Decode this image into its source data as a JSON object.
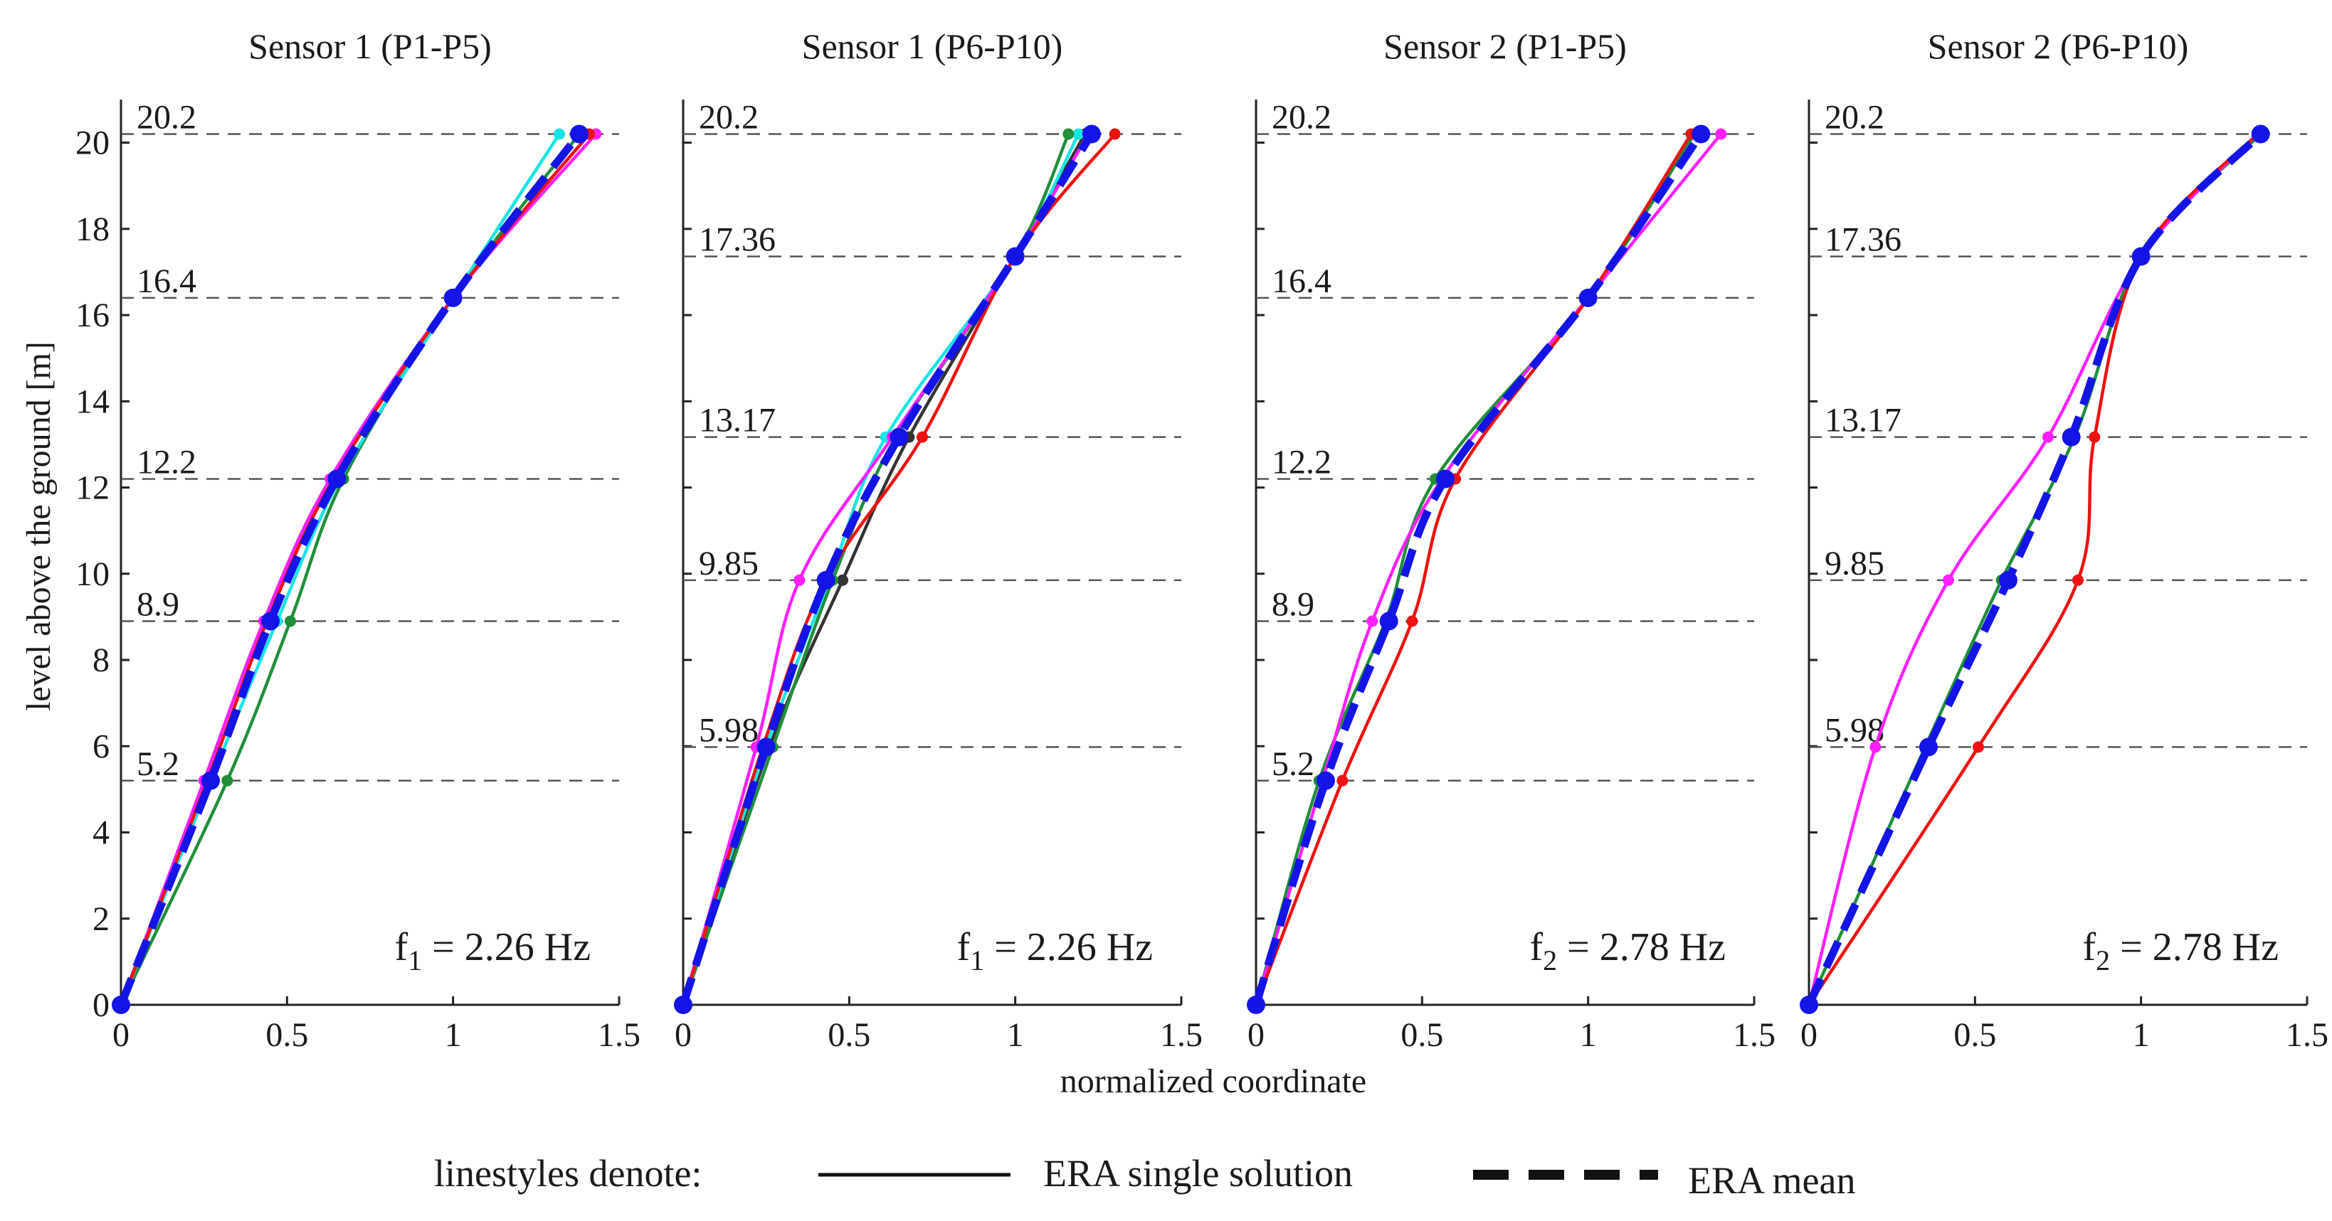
{
  "chart_data": {
    "type": "line",
    "orientation": "mode-shape profiles (x = normalized coordinate, y = level)",
    "xlabel": "normalized coordinate",
    "ylabel": "level above the ground  [m]",
    "xlim": [
      0,
      1.5
    ],
    "ylim": [
      0,
      20.2
    ],
    "xticks": [
      0,
      0.5,
      1,
      1.5
    ],
    "xtick_labels": [
      "0",
      "0.5",
      "1",
      "1.5"
    ],
    "yticks": [
      0,
      2,
      4,
      6,
      8,
      10,
      12,
      14,
      16,
      18,
      20
    ],
    "ytick_labels": [
      "0",
      "2",
      "4",
      "6",
      "8",
      "10",
      "12",
      "14",
      "16",
      "18",
      "20"
    ],
    "colors": {
      "green": "#1f8f3a",
      "cyan": "#17e5e5",
      "magenta": "#ff1fff",
      "red": "#ee1111",
      "dark": "#333333",
      "mean": "#1414e6",
      "level_line": "#555555"
    },
    "panels": [
      {
        "title": "Sensor 1  (P1-P5)",
        "freq_label": "f",
        "freq_sub": "1",
        "freq_value": " = 2.26 Hz",
        "levels": [
          20.2,
          16.4,
          12.2,
          8.9,
          5.2
        ],
        "level_labels": [
          "20.2",
          "16.4",
          "12.2",
          "8.9",
          "5.2"
        ],
        "series": [
          {
            "name": "single-1",
            "color": "green",
            "x": [
              0,
              0.32,
              0.51,
              0.67,
              1.0,
              1.38
            ],
            "y": [
              0,
              5.2,
              8.9,
              12.2,
              16.4,
              20.2
            ]
          },
          {
            "name": "single-2",
            "color": "cyan",
            "x": [
              0,
              0.27,
              0.47,
              0.66,
              1.0,
              1.32
            ],
            "y": [
              0,
              5.2,
              8.9,
              12.2,
              16.4,
              20.2
            ]
          },
          {
            "name": "single-3",
            "color": "magenta",
            "x": [
              0,
              0.25,
              0.43,
              0.63,
              1.0,
              1.43
            ],
            "y": [
              0,
              5.2,
              8.9,
              12.2,
              16.4,
              20.2
            ]
          },
          {
            "name": "single-4",
            "color": "red",
            "x": [
              0,
              0.26,
              0.44,
              0.64,
              1.0,
              1.41
            ],
            "y": [
              0,
              5.2,
              8.9,
              12.2,
              16.4,
              20.2
            ]
          }
        ],
        "mean": {
          "x": [
            0,
            0.27,
            0.45,
            0.65,
            1.0,
            1.38
          ],
          "y": [
            0,
            5.2,
            8.9,
            12.2,
            16.4,
            20.2
          ]
        }
      },
      {
        "title": "Sensor 1  (P6-P10)",
        "freq_label": "f",
        "freq_sub": "1",
        "freq_value": " = 2.26 Hz",
        "levels": [
          20.2,
          17.36,
          13.17,
          9.85,
          5.98
        ],
        "level_labels": [
          "20.2",
          "17.36",
          "13.17",
          "9.85",
          "5.98"
        ],
        "series": [
          {
            "name": "single-1",
            "color": "dark",
            "x": [
              0,
              0.26,
              0.48,
              0.68,
              1.0,
              1.21
            ],
            "y": [
              0,
              5.98,
              9.85,
              13.17,
              17.36,
              20.2
            ]
          },
          {
            "name": "single-2",
            "color": "cyan",
            "x": [
              0,
              0.25,
              0.44,
              0.61,
              1.0,
              1.19
            ],
            "y": [
              0,
              5.98,
              9.85,
              13.17,
              17.36,
              20.2
            ]
          },
          {
            "name": "single-3",
            "color": "green",
            "x": [
              0,
              0.27,
              0.45,
              0.64,
              1.0,
              1.16
            ],
            "y": [
              0,
              5.98,
              9.85,
              13.17,
              17.36,
              20.2
            ]
          },
          {
            "name": "single-4",
            "color": "magenta",
            "x": [
              0,
              0.22,
              0.35,
              0.63,
              1.0,
              1.22
            ],
            "y": [
              0,
              5.98,
              9.85,
              13.17,
              17.36,
              20.2
            ]
          },
          {
            "name": "single-5",
            "color": "red",
            "x": [
              0,
              0.24,
              0.43,
              0.72,
              1.0,
              1.3
            ],
            "y": [
              0,
              5.98,
              9.85,
              13.17,
              17.36,
              20.2
            ]
          }
        ],
        "mean": {
          "x": [
            0,
            0.25,
            0.43,
            0.65,
            1.0,
            1.23
          ],
          "y": [
            0,
            5.98,
            9.85,
            13.17,
            17.36,
            20.2
          ]
        }
      },
      {
        "title": "Sensor 2  (P1-P5)",
        "freq_label": "f",
        "freq_sub": "2",
        "freq_value": " = 2.78 Hz",
        "levels": [
          20.2,
          16.4,
          12.2,
          8.9,
          5.2
        ],
        "level_labels": [
          "20.2",
          "16.4",
          "12.2",
          "8.9",
          "5.2"
        ],
        "series": [
          {
            "name": "single-1",
            "color": "green",
            "x": [
              0,
              0.19,
              0.39,
              0.54,
              1.0,
              1.32
            ],
            "y": [
              0,
              5.2,
              8.9,
              12.2,
              16.4,
              20.2
            ]
          },
          {
            "name": "single-2",
            "color": "magenta",
            "x": [
              0,
              0.2,
              0.35,
              0.56,
              1.0,
              1.4
            ],
            "y": [
              0,
              5.2,
              8.9,
              12.2,
              16.4,
              20.2
            ]
          },
          {
            "name": "single-3",
            "color": "red",
            "x": [
              0,
              0.26,
              0.47,
              0.6,
              1.0,
              1.31
            ],
            "y": [
              0,
              5.2,
              8.9,
              12.2,
              16.4,
              20.2
            ]
          }
        ],
        "mean": {
          "x": [
            0,
            0.21,
            0.4,
            0.57,
            1.0,
            1.34
          ],
          "y": [
            0,
            5.2,
            8.9,
            12.2,
            16.4,
            20.2
          ]
        }
      },
      {
        "title": "Sensor 2  (P6-P10)",
        "freq_label": "f",
        "freq_sub": "2",
        "freq_value": " = 2.78 Hz",
        "levels": [
          20.2,
          17.36,
          13.17,
          9.85,
          5.98
        ],
        "level_labels": [
          "20.2",
          "17.36",
          "13.17",
          "9.85",
          "5.98"
        ],
        "series": [
          {
            "name": "single-1",
            "color": "green",
            "x": [
              0,
              0.35,
              0.58,
              0.8,
              1.0,
              1.36
            ],
            "y": [
              0,
              5.98,
              9.85,
              13.17,
              17.36,
              20.2
            ]
          },
          {
            "name": "single-2",
            "color": "magenta",
            "x": [
              0,
              0.2,
              0.42,
              0.72,
              1.0,
              1.35
            ],
            "y": [
              0,
              5.98,
              9.85,
              13.17,
              17.36,
              20.2
            ]
          },
          {
            "name": "single-3",
            "color": "red",
            "x": [
              0,
              0.51,
              0.81,
              0.86,
              1.0,
              1.35
            ],
            "y": [
              0,
              5.98,
              9.85,
              13.17,
              17.36,
              20.2
            ]
          }
        ],
        "mean": {
          "x": [
            0,
            0.36,
            0.6,
            0.79,
            1.0,
            1.36
          ],
          "y": [
            0,
            5.98,
            9.85,
            13.17,
            17.36,
            20.2
          ]
        }
      }
    ],
    "legend": {
      "intro": "linestyles denote:",
      "single_label": "ERA single solution",
      "mean_label": "ERA mean"
    }
  }
}
